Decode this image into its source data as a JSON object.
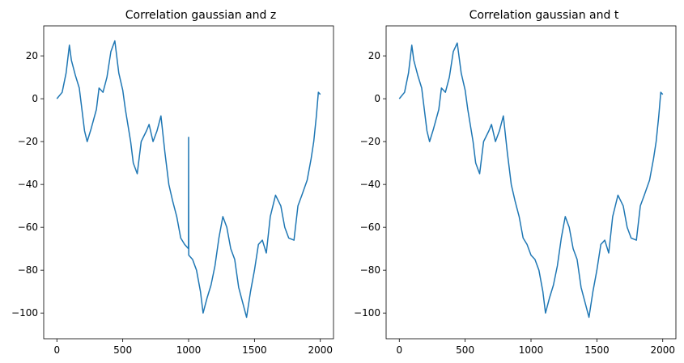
{
  "figure": {
    "background": "#ffffff"
  },
  "chart_data": [
    {
      "type": "line",
      "title": "Correlation gaussian and z",
      "xlabel": "",
      "ylabel": "",
      "xlim": [
        -100,
        2100
      ],
      "ylim": [
        -112,
        34
      ],
      "xticks": [
        0,
        500,
        1000,
        1500,
        2000
      ],
      "yticks": [
        20,
        0,
        -20,
        -40,
        -60,
        -80,
        -100
      ],
      "grid": false,
      "color": "#1f77b4",
      "series": [
        {
          "x": [
            0,
            40,
            70,
            95,
            110,
            140,
            170,
            210,
            230,
            260,
            300,
            320,
            350,
            380,
            410,
            440,
            470,
            500,
            520,
            560,
            580,
            610,
            640,
            680,
            700,
            730,
            760,
            790,
            820,
            850,
            880,
            910,
            940,
            970,
            999,
            1000,
            1001,
            1030,
            1060,
            1090,
            1110,
            1140,
            1170,
            1200,
            1230,
            1260,
            1290,
            1320,
            1350,
            1380,
            1410,
            1440,
            1470,
            1500,
            1530,
            1560,
            1590,
            1620,
            1660,
            1700,
            1730,
            1760,
            1800,
            1830,
            1860,
            1900,
            1930,
            1950,
            1970,
            1985,
            2000
          ],
          "y": [
            0,
            3,
            12,
            25,
            18,
            11,
            5,
            -15,
            -20,
            -14,
            -5,
            5,
            3,
            10,
            22,
            27,
            12,
            4,
            -5,
            -20,
            -30,
            -35,
            -20,
            -15,
            -12,
            -20,
            -15,
            -8,
            -25,
            -40,
            -48,
            -55,
            -65,
            -68,
            -70,
            -18,
            -73,
            -75,
            -80,
            -90,
            -100,
            -93,
            -87,
            -78,
            -65,
            -55,
            -60,
            -70,
            -75,
            -88,
            -95,
            -102,
            -90,
            -80,
            -68,
            -66,
            -72,
            -55,
            -45,
            -50,
            -60,
            -65,
            -66,
            -50,
            -45,
            -38,
            -28,
            -20,
            -8,
            3,
            2
          ]
        }
      ]
    },
    {
      "type": "line",
      "title": "Correlation gaussian and t",
      "xlabel": "",
      "ylabel": "",
      "xlim": [
        -100,
        2100
      ],
      "ylim": [
        -112,
        34
      ],
      "xticks": [
        0,
        500,
        1000,
        1500,
        2000
      ],
      "yticks": [
        20,
        0,
        -20,
        -40,
        -60,
        -80,
        -100
      ],
      "grid": false,
      "color": "#1f77b4",
      "series": [
        {
          "x": [
            0,
            40,
            70,
            95,
            110,
            140,
            170,
            210,
            230,
            260,
            300,
            320,
            350,
            380,
            410,
            440,
            470,
            500,
            520,
            560,
            580,
            610,
            640,
            680,
            700,
            730,
            760,
            790,
            820,
            850,
            880,
            910,
            940,
            970,
            1000,
            1030,
            1060,
            1090,
            1110,
            1140,
            1170,
            1200,
            1230,
            1260,
            1290,
            1320,
            1350,
            1380,
            1410,
            1440,
            1470,
            1500,
            1530,
            1560,
            1590,
            1620,
            1660,
            1700,
            1730,
            1760,
            1800,
            1830,
            1860,
            1900,
            1930,
            1950,
            1970,
            1985,
            2000
          ],
          "y": [
            0,
            3,
            12,
            25,
            18,
            11,
            5,
            -15,
            -20,
            -14,
            -5,
            5,
            3,
            10,
            22,
            26,
            12,
            4,
            -5,
            -20,
            -30,
            -35,
            -20,
            -15,
            -12,
            -20,
            -15,
            -8,
            -25,
            -40,
            -48,
            -55,
            -65,
            -68,
            -73,
            -75,
            -80,
            -90,
            -100,
            -93,
            -87,
            -78,
            -65,
            -55,
            -60,
            -70,
            -75,
            -88,
            -95,
            -102,
            -90,
            -80,
            -68,
            -66,
            -72,
            -55,
            -45,
            -50,
            -60,
            -65,
            -66,
            -50,
            -45,
            -38,
            -28,
            -20,
            -8,
            3,
            2
          ]
        }
      ]
    }
  ]
}
